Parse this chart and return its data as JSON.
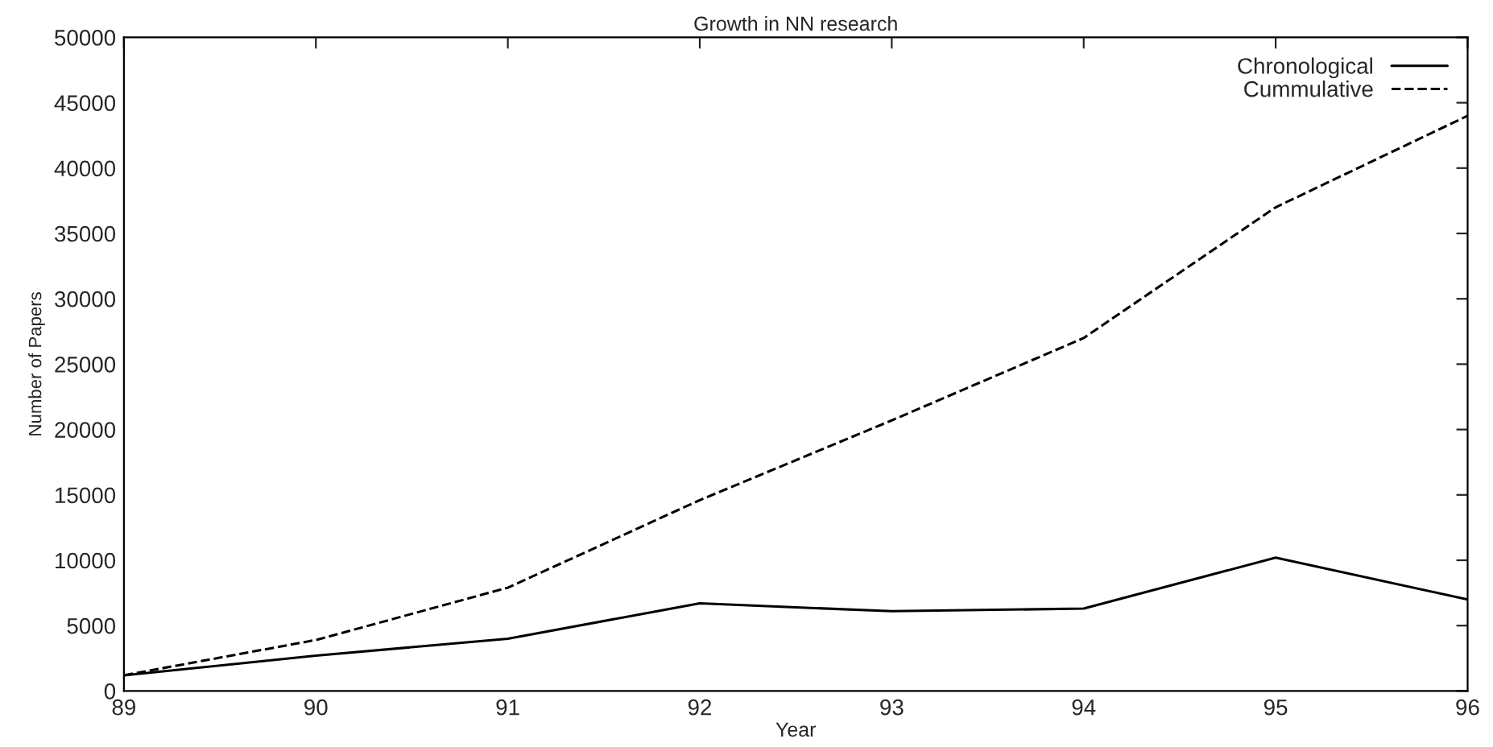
{
  "chart_data": {
    "type": "line",
    "title": "Growth in NN research",
    "xlabel": "Year",
    "ylabel": "Number of Papers",
    "x": [
      89,
      90,
      91,
      92,
      93,
      94,
      95,
      96
    ],
    "series": [
      {
        "name": "Chronological",
        "color": "#000000",
        "line_style": "solid",
        "values": [
          1200,
          2700,
          4000,
          6700,
          6100,
          6300,
          10200,
          7000
        ]
      },
      {
        "name": "Cummulative",
        "color": "#000000",
        "line_style": "dashed",
        "values": [
          1200,
          3900,
          7900,
          14600,
          20700,
          27000,
          37000,
          44000
        ]
      }
    ],
    "xlim": [
      89,
      96
    ],
    "xticks": [
      89,
      90,
      91,
      92,
      93,
      94,
      95,
      96
    ],
    "ylim": [
      0,
      50000
    ],
    "yticks": [
      0,
      5000,
      10000,
      15000,
      20000,
      25000,
      30000,
      35000,
      40000,
      45000,
      50000
    ],
    "grid": false,
    "legend": "top right",
    "marker": "none"
  }
}
